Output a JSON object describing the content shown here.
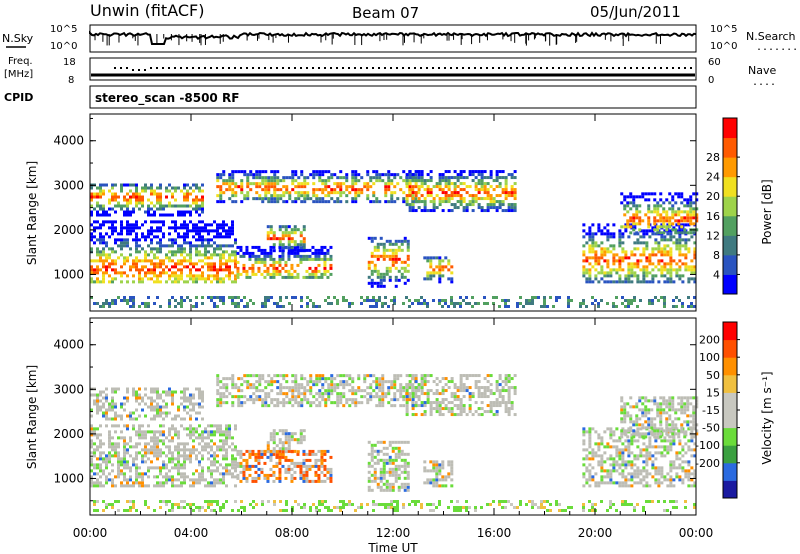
{
  "header": {
    "station": "Unwin (fitACF)",
    "beam": "Beam 07",
    "date": "05/Jun/2011"
  },
  "strip_panels": {
    "nsky_label": "N.Sky",
    "nsearch_label": "N.Search",
    "nsearch_marker": "........",
    "nsky_ticks": [
      "10^5",
      "10^0"
    ],
    "nsearch_ticks": [
      "10^5",
      "10^0"
    ],
    "freq_label": "Freq.",
    "freq_unit": "[MHz]",
    "freq_ticks": [
      "18",
      "8"
    ],
    "nave_label": "Nave",
    "nave_marker": "....",
    "nave_ticks": [
      "60",
      "0"
    ],
    "cpid_label": "CPID",
    "cpid_value": "stereo_scan -8500 RF"
  },
  "colors": {
    "power_scale": [
      "#0000ff",
      "#2a54c0",
      "#3f7a80",
      "#52a060",
      "#9ed34a",
      "#f0e020",
      "#ff9a00",
      "#ff5a00",
      "#ff0000"
    ],
    "velocity_scale": [
      "#1a1aa0",
      "#2a6ae0",
      "#3aa040",
      "#6adc3a",
      "#c8c8c0",
      "#c8c8c0",
      "#f0c040",
      "#ff9000",
      "#ff5000",
      "#ff0000"
    ],
    "ground_scatter": "#bdbdb5"
  },
  "chart_data": [
    {
      "type": "heatmap",
      "title": "Power",
      "ylabel": "Slant Range [km]",
      "xlabel": "",
      "ylim": [
        180,
        4600
      ],
      "yticks": [
        "1000",
        "2000",
        "3000",
        "4000"
      ],
      "colorbar_label": "Power [dB]",
      "colorbar_ticks": [
        "4",
        "8",
        "12",
        "16",
        "20",
        "24",
        "28"
      ],
      "colorbar_range": [
        0,
        32
      ],
      "xlim_hours": [
        0,
        24
      ],
      "grid": false
    },
    {
      "type": "heatmap",
      "title": "Velocity",
      "ylabel": "Slant Range [km]",
      "xlabel": "Time UT",
      "ylim": [
        180,
        4600
      ],
      "yticks": [
        "1000",
        "2000",
        "3000",
        "4000"
      ],
      "xticks": [
        "00:00",
        "04:00",
        "08:00",
        "12:00",
        "16:00",
        "20:00",
        "00:00"
      ],
      "colorbar_label": "Velocity [m s⁻¹]",
      "colorbar_ticks": [
        "200",
        "100",
        "50",
        "15",
        "-15",
        "-50",
        "-100",
        "-200"
      ],
      "xlim_hours": [
        0,
        24
      ],
      "grid": false
    }
  ]
}
